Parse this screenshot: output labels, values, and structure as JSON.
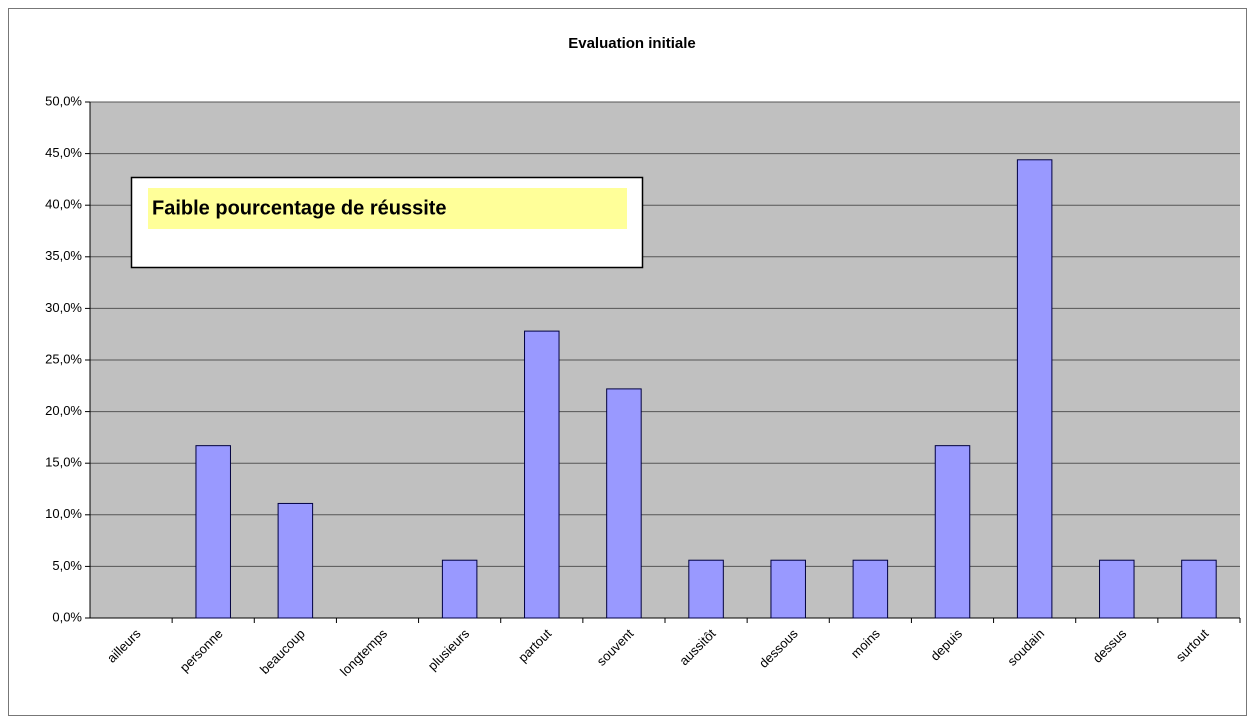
{
  "chart_data": {
    "type": "bar",
    "title": "Evaluation initiale",
    "annotation": "Faible pourcentage de réussite",
    "categories": [
      "ailleurs",
      "personne",
      "beaucoup",
      "longtemps",
      "plusieurs",
      "partout",
      "souvent",
      "aussitôt",
      "dessous",
      "moins",
      "depuis",
      "soudain",
      "dessus",
      "surtout"
    ],
    "values": [
      0,
      16.7,
      11.1,
      0,
      5.6,
      27.8,
      22.2,
      5.6,
      5.6,
      5.6,
      16.7,
      44.4,
      5.6,
      5.6
    ],
    "color": "#9999ff",
    "ylim": [
      0,
      50
    ],
    "yticks": [
      {
        "value": 0,
        "label": "0,0%"
      },
      {
        "value": 5,
        "label": "5,0%"
      },
      {
        "value": 10,
        "label": "10,0%"
      },
      {
        "value": 15,
        "label": "15,0%"
      },
      {
        "value": 20,
        "label": "20,0%"
      },
      {
        "value": 25,
        "label": "25,0%"
      },
      {
        "value": 30,
        "label": "30,0%"
      },
      {
        "value": 35,
        "label": "35,0%"
      },
      {
        "value": 40,
        "label": "40,0%"
      },
      {
        "value": 45,
        "label": "45,0%"
      },
      {
        "value": 50,
        "label": "50,0%"
      }
    ],
    "grid": true
  }
}
